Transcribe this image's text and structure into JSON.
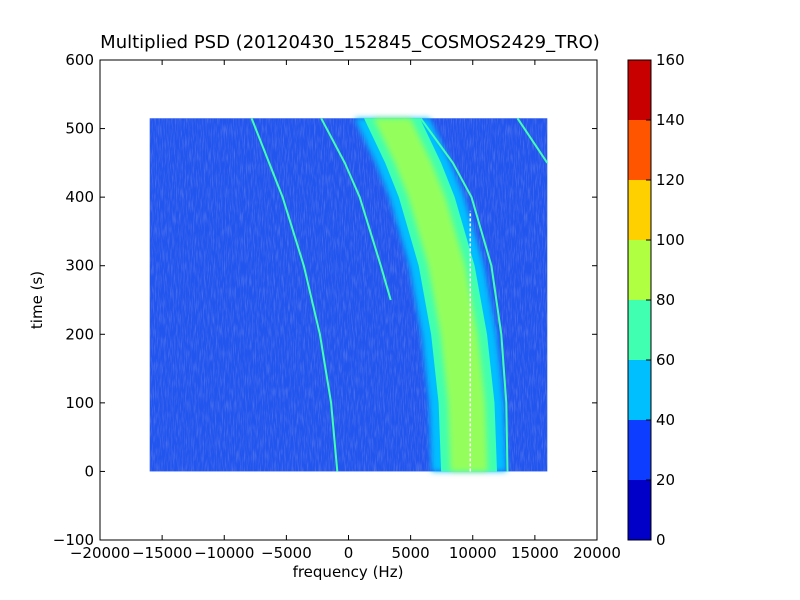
{
  "chart_data": {
    "type": "heatmap",
    "title": "Multiplied PSD (20120430_152845_COSMOS2429_TRO)",
    "xlabel": "frequency (Hz)",
    "ylabel": "time (s)",
    "xlim": [
      -20000,
      20000
    ],
    "ylim": [
      -100,
      600
    ],
    "x_ticks": [
      -20000,
      -15000,
      -10000,
      -5000,
      0,
      5000,
      10000,
      15000,
      20000
    ],
    "x_tick_labels": [
      "−20000",
      "−15000",
      "−10000",
      "−5000",
      "0",
      "5000",
      "10000",
      "15000",
      "20000"
    ],
    "y_ticks": [
      -100,
      0,
      100,
      200,
      300,
      400,
      500,
      600
    ],
    "y_tick_labels": [
      "−100",
      "0",
      "100",
      "200",
      "300",
      "400",
      "500",
      "600"
    ],
    "data_extent": {
      "x": [
        -16000,
        16000
      ],
      "y": [
        0,
        515
      ]
    },
    "colorbar": {
      "levels": [
        0,
        20,
        40,
        60,
        80,
        100,
        120,
        140,
        160
      ],
      "tick_labels": [
        "0",
        "20",
        "40",
        "60",
        "80",
        "100",
        "120",
        "140",
        "160"
      ],
      "colors": [
        "#0000c8",
        "#0d3dff",
        "#00bfff",
        "#40ffb0",
        "#b0ff40",
        "#ffd000",
        "#ff5500",
        "#c80000"
      ]
    },
    "background_level_color": "#2255ee",
    "band": {
      "description_points": [],
      "center_x_at_y": [
        {
          "y": 0,
          "x": 9700
        },
        {
          "y": 100,
          "x": 9500
        },
        {
          "y": 200,
          "x": 8900
        },
        {
          "y": 300,
          "x": 7900
        },
        {
          "y": 400,
          "x": 6300
        },
        {
          "y": 450,
          "x": 5200
        },
        {
          "y": 515,
          "x": 3500
        }
      ],
      "inner_half_width": 1500,
      "outer_half_width": 3000
    },
    "traces": [
      {
        "points": [
          {
            "y": 515,
            "x": -7800
          },
          {
            "y": 400,
            "x": -5300
          },
          {
            "y": 300,
            "x": -3600
          },
          {
            "y": 200,
            "x": -2300
          },
          {
            "y": 100,
            "x": -1400
          },
          {
            "y": 0,
            "x": -900
          }
        ]
      },
      {
        "points": [
          {
            "y": 515,
            "x": -2200
          },
          {
            "y": 450,
            "x": -300
          },
          {
            "y": 400,
            "x": 900
          },
          {
            "y": 300,
            "x": 2600
          },
          {
            "y": 250,
            "x": 3400
          }
        ]
      },
      {
        "points": [
          {
            "y": 515,
            "x": 5800
          },
          {
            "y": 450,
            "x": 8400
          },
          {
            "y": 400,
            "x": 9900
          },
          {
            "y": 300,
            "x": 11500
          },
          {
            "y": 200,
            "x": 12300
          },
          {
            "y": 100,
            "x": 12700
          },
          {
            "y": 0,
            "x": 12800
          }
        ]
      },
      {
        "points": [
          {
            "y": 515,
            "x": 13600
          },
          {
            "y": 450,
            "x": 16000
          }
        ]
      }
    ],
    "carrier_line": {
      "x": 9800,
      "y": [
        0,
        380
      ]
    }
  }
}
